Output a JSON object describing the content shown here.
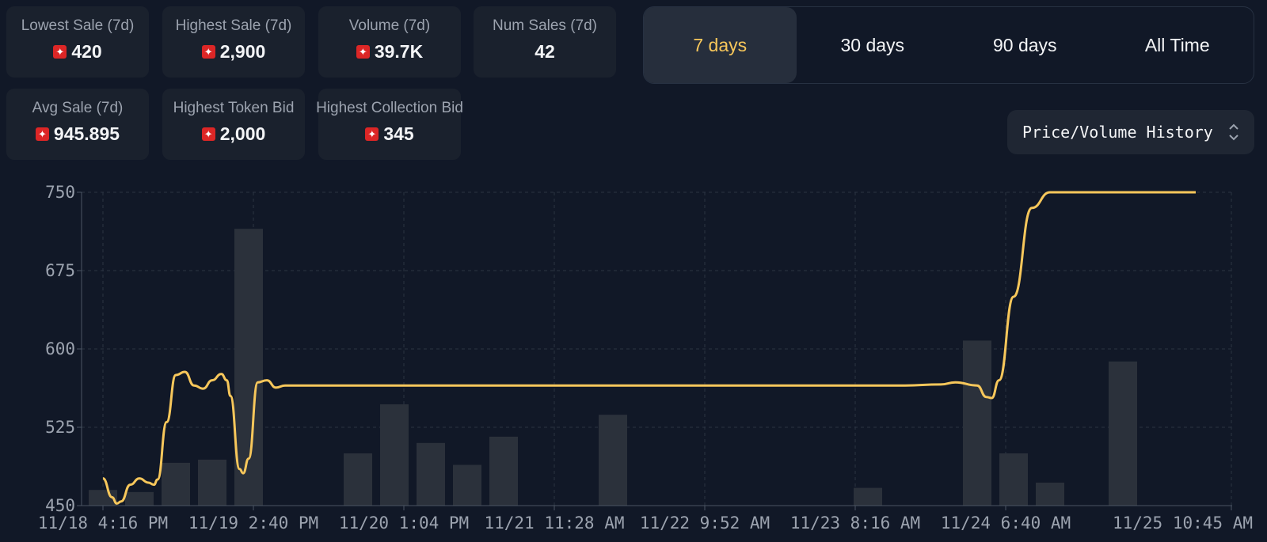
{
  "stats": [
    {
      "label": "Lowest Sale (7d)",
      "value": "420",
      "icon": "token-icon"
    },
    {
      "label": "Highest Sale (7d)",
      "value": "2,900",
      "icon": "token-icon"
    },
    {
      "label": "Volume (7d)",
      "value": "39.7K",
      "icon": "token-icon"
    },
    {
      "label": "Num Sales (7d)",
      "value": "42"
    },
    {
      "label": "Avg Sale (7d)",
      "value": "945.895",
      "icon": "token-icon"
    },
    {
      "label": "Highest Token Bid",
      "value": "2,000",
      "icon": "token-icon"
    },
    {
      "label": "Highest Collection Bid",
      "value": "345",
      "icon": "token-icon"
    }
  ],
  "range_tabs": [
    {
      "label": "7 days",
      "active": true
    },
    {
      "label": "30 days",
      "active": false
    },
    {
      "label": "90 days",
      "active": false
    },
    {
      "label": "All Time",
      "active": false
    }
  ],
  "chart_select": {
    "label": "Price/Volume History",
    "icon": "up-down-chevron-icon"
  },
  "colors": {
    "accent": "#f7c75b",
    "background": "#111827",
    "card": "#1a212d",
    "bar": "#2b313b",
    "token": "#dc2626"
  },
  "chart_data": {
    "type": "line",
    "title": "",
    "xlabel": "",
    "ylabel": "",
    "ylim": [
      450,
      750
    ],
    "y_ticks": [
      450,
      525,
      600,
      675,
      750
    ],
    "x_tick_labels": [
      "11/18 4:16 PM",
      "11/19 2:40 PM",
      "11/20 1:04 PM",
      "11/21 11:28 AM",
      "11/22 9:52 AM",
      "11/23 8:16 AM",
      "11/24 6:40 AM",
      "11/25 10:45 AM"
    ],
    "grid": true,
    "line_series": {
      "values": [
        [
          0.0,
          476
        ],
        [
          0.25,
          458
        ],
        [
          0.38,
          452
        ],
        [
          0.5,
          454
        ],
        [
          0.75,
          470
        ],
        [
          1.0,
          476
        ],
        [
          1.25,
          472
        ],
        [
          1.4,
          470
        ],
        [
          1.5,
          475
        ],
        [
          1.75,
          530
        ],
        [
          2.0,
          575
        ],
        [
          2.25,
          578
        ],
        [
          2.5,
          565
        ],
        [
          2.75,
          562
        ],
        [
          3.0,
          570
        ],
        [
          3.25,
          576
        ],
        [
          3.4,
          570
        ],
        [
          3.5,
          555
        ],
        [
          3.75,
          485
        ],
        [
          3.85,
          481
        ],
        [
          4.0,
          495
        ],
        [
          4.25,
          568
        ],
        [
          4.5,
          570
        ],
        [
          4.75,
          563
        ],
        [
          5.0,
          565
        ],
        [
          6.0,
          565
        ],
        [
          8.0,
          565
        ],
        [
          16.0,
          565
        ],
        [
          22.0,
          565
        ],
        [
          23.0,
          566
        ],
        [
          23.4,
          568
        ],
        [
          24.0,
          565
        ],
        [
          24.25,
          554
        ],
        [
          24.4,
          553
        ],
        [
          24.6,
          570
        ],
        [
          25.0,
          650
        ],
        [
          25.5,
          735
        ],
        [
          26.0,
          750
        ],
        [
          27.0,
          750
        ],
        [
          30.0,
          750
        ]
      ]
    },
    "volume_bars": [
      {
        "x": 0.0,
        "value": 465
      },
      {
        "x": 1.0,
        "value": 463
      },
      {
        "x": 2.0,
        "value": 491
      },
      {
        "x": 3.0,
        "value": 494
      },
      {
        "x": 4.0,
        "value": 715
      },
      {
        "x": 7.0,
        "value": 500
      },
      {
        "x": 8.0,
        "value": 547
      },
      {
        "x": 9.0,
        "value": 510
      },
      {
        "x": 10.0,
        "value": 489
      },
      {
        "x": 11.0,
        "value": 516
      },
      {
        "x": 14.0,
        "value": 537
      },
      {
        "x": 21.0,
        "value": 467
      },
      {
        "x": 24.0,
        "value": 608
      },
      {
        "x": 25.0,
        "value": 500
      },
      {
        "x": 26.0,
        "value": 472
      },
      {
        "x": 28.0,
        "value": 588
      }
    ]
  }
}
